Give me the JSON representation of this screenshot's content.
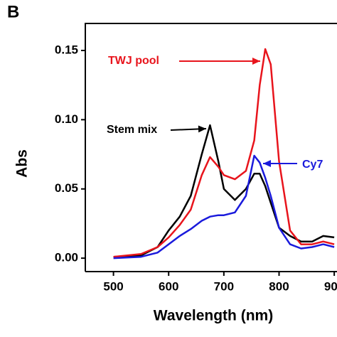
{
  "chart_data": {
    "type": "line",
    "panel_label": "B",
    "xlabel": "Wavelength (nm)",
    "ylabel": "Abs",
    "x": [
      500,
      550,
      580,
      600,
      620,
      640,
      660,
      675,
      690,
      700,
      720,
      740,
      755,
      765,
      775,
      785,
      800,
      820,
      840,
      860,
      880,
      900
    ],
    "series": [
      {
        "name": "Stem mix",
        "color": "#000000",
        "values": [
          0.001,
          0.002,
          0.008,
          0.02,
          0.03,
          0.045,
          0.075,
          0.096,
          0.07,
          0.05,
          0.042,
          0.05,
          0.061,
          0.061,
          0.052,
          0.04,
          0.022,
          0.016,
          0.012,
          0.012,
          0.016,
          0.015
        ]
      },
      {
        "name": "TWJ pool",
        "color": "#e8141c",
        "values": [
          0.001,
          0.003,
          0.008,
          0.015,
          0.024,
          0.035,
          0.06,
          0.073,
          0.066,
          0.06,
          0.057,
          0.063,
          0.085,
          0.125,
          0.151,
          0.14,
          0.07,
          0.02,
          0.01,
          0.01,
          0.012,
          0.01
        ]
      },
      {
        "name": "Cy7",
        "color": "#1a1adc",
        "values": [
          0,
          0.001,
          0.004,
          0.01,
          0.016,
          0.021,
          0.027,
          0.03,
          0.031,
          0.031,
          0.033,
          0.045,
          0.074,
          0.069,
          0.058,
          0.045,
          0.022,
          0.01,
          0.007,
          0.008,
          0.01,
          0.008
        ]
      }
    ],
    "xlim": [
      449,
      905
    ],
    "ylim": [
      -0.0097,
      0.1695
    ],
    "xticks": [
      500,
      600,
      700,
      800,
      900
    ],
    "yticks": [
      {
        "value": 0,
        "label": "0.00"
      },
      {
        "value": 0.05,
        "label": "0.05"
      },
      {
        "value": 0.1,
        "label": "0.10"
      },
      {
        "value": 0.15,
        "label": "0.15"
      }
    ]
  }
}
